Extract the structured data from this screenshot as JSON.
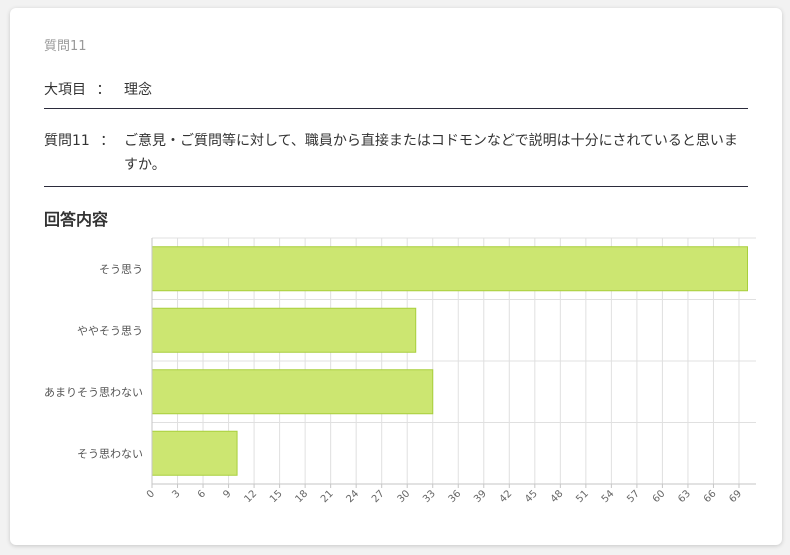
{
  "question_heading": "質問11",
  "category": {
    "label": "大項目",
    "colon": "：",
    "value": "理念"
  },
  "question": {
    "label": "質問11",
    "colon": "：",
    "text": "ご意見・ご質問等に対して、職員から直接またはコドモンなどで説明は十分にされていると思いますか。"
  },
  "section_title": "回答内容",
  "chart_data": {
    "type": "bar",
    "orientation": "horizontal",
    "categories": [
      "そう思う",
      "ややそう思う",
      "あまりそう思わない",
      "そう思わない"
    ],
    "values": [
      70,
      31,
      33,
      10
    ],
    "xlim": [
      0,
      71
    ],
    "xticks": [
      0,
      3,
      6,
      9,
      12,
      15,
      18,
      21,
      24,
      27,
      30,
      33,
      36,
      39,
      42,
      45,
      48,
      51,
      54,
      57,
      60,
      63,
      66,
      69
    ],
    "grid": true,
    "colors": {
      "bar_fill": "#cce671",
      "bar_stroke": "#a8cf3c",
      "grid": "#e0e0e0",
      "axis": "#c6c6c6"
    }
  }
}
